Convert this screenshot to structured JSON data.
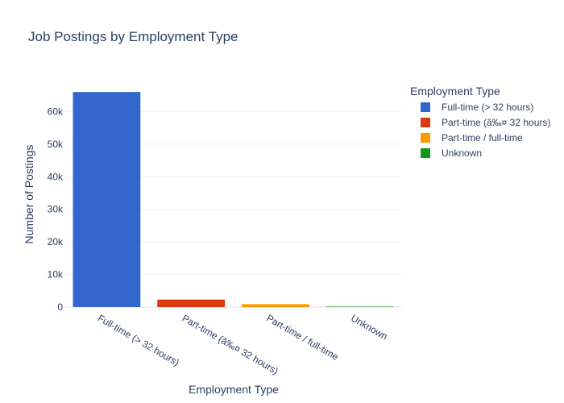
{
  "chart_data": {
    "type": "bar",
    "title": "Job Postings by Employment Type",
    "xlabel": "Employment Type",
    "ylabel": "Number of Postings",
    "categories": [
      "Full-time (> 32 hours)",
      "Part-time (â‰¤ 32 hours)",
      "Part-time / full-time",
      "Unknown"
    ],
    "values": [
      66000,
      2300,
      900,
      150
    ],
    "colors": [
      "#3366cc",
      "#dc3912",
      "#ff9900",
      "#109618"
    ],
    "ylim": [
      0,
      69500
    ],
    "yticks": [
      0,
      10000,
      20000,
      30000,
      40000,
      50000,
      60000
    ],
    "ytick_labels": [
      "0",
      "10k",
      "20k",
      "30k",
      "40k",
      "50k",
      "60k"
    ],
    "grid": true,
    "legend": {
      "title": "Employment Type",
      "placement": "right",
      "entries": [
        "Full-time (> 32 hours)",
        "Part-time (â‰¤ 32 hours)",
        "Part-time / full-time",
        "Unknown"
      ]
    }
  }
}
